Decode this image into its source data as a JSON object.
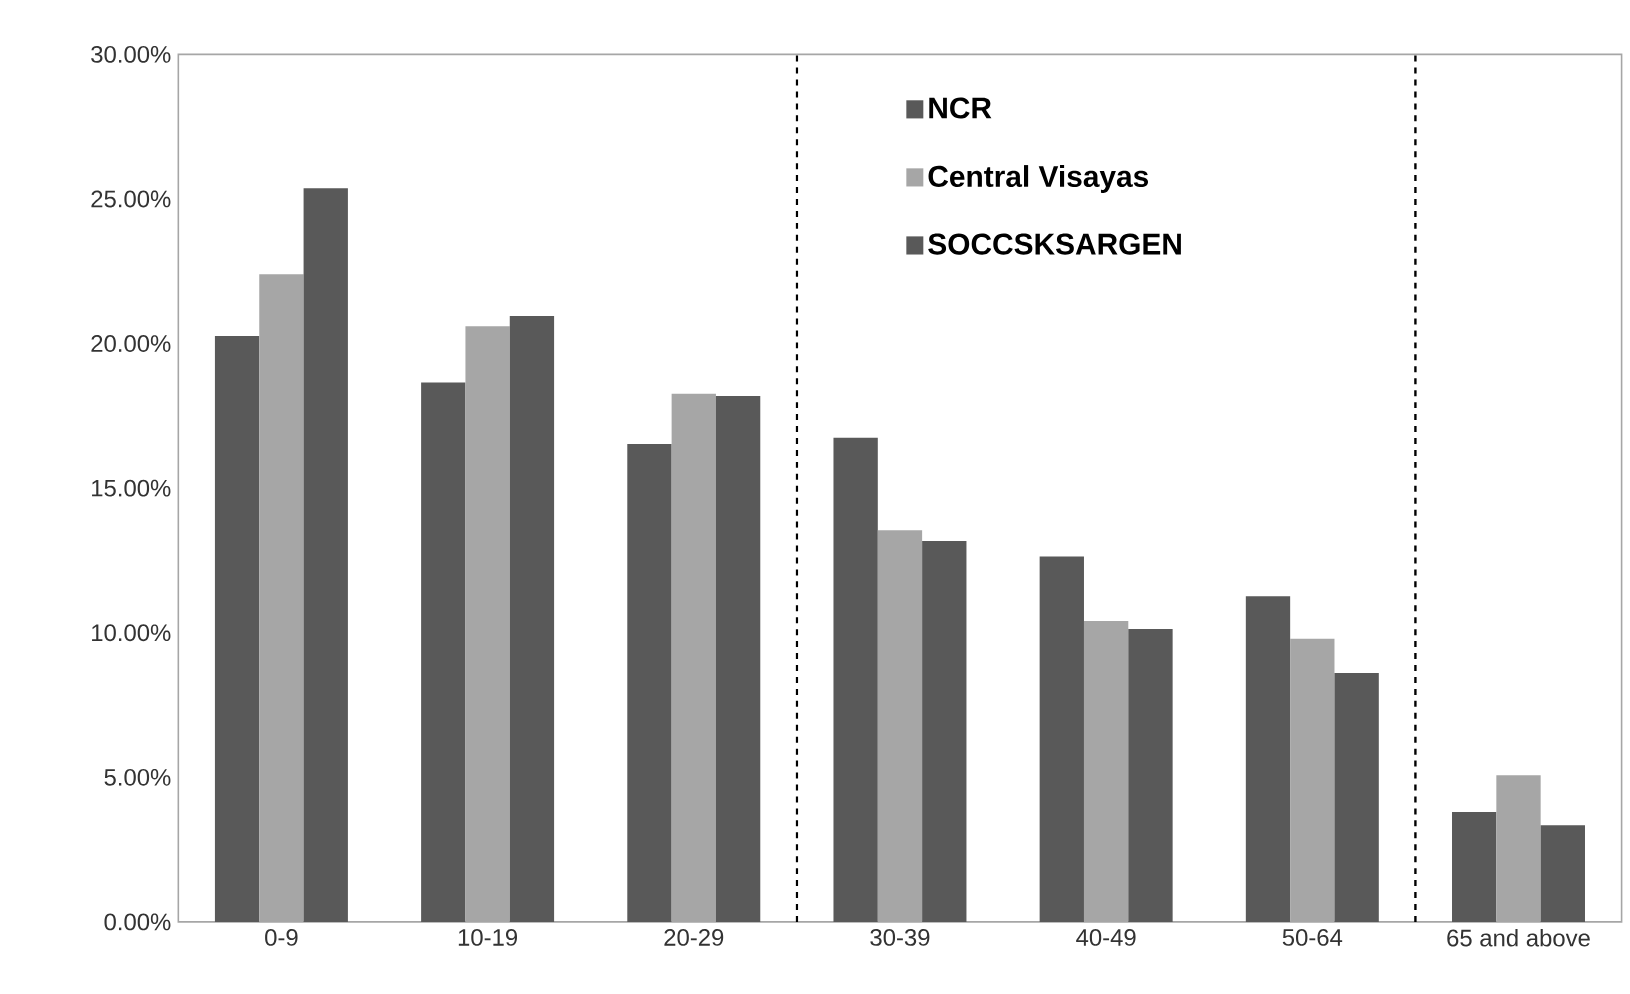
{
  "chart_data": {
    "type": "bar",
    "categories": [
      "0-9",
      "10-19",
      "20-29",
      "30-39",
      "40-49",
      "50-64",
      "65 and above"
    ],
    "series": [
      {
        "name": "NCR",
        "color": "#595959",
        "values": [
          20.26,
          18.65,
          16.53,
          16.74,
          12.64,
          11.26,
          3.8
        ]
      },
      {
        "name": "Central Visayas",
        "color": "#a6a6a6",
        "values": [
          22.4,
          20.6,
          18.26,
          13.54,
          10.41,
          9.79,
          5.07
        ]
      },
      {
        "name": "SOCCSKSARGEN",
        "color": "#595959",
        "values": [
          25.37,
          20.95,
          18.19,
          13.17,
          10.13,
          8.61,
          3.34
        ]
      }
    ],
    "ylim": [
      0,
      30
    ],
    "yticks": [
      {
        "value": 0,
        "label": "0.00%"
      },
      {
        "value": 5,
        "label": "5.00%"
      },
      {
        "value": 10,
        "label": "10.00%"
      },
      {
        "value": 15,
        "label": "15.00%"
      },
      {
        "value": 20,
        "label": "20.00%"
      },
      {
        "value": 25,
        "label": "25.00%"
      },
      {
        "value": 30,
        "label": "30.00%"
      }
    ],
    "legend": "top",
    "grid": false
  }
}
